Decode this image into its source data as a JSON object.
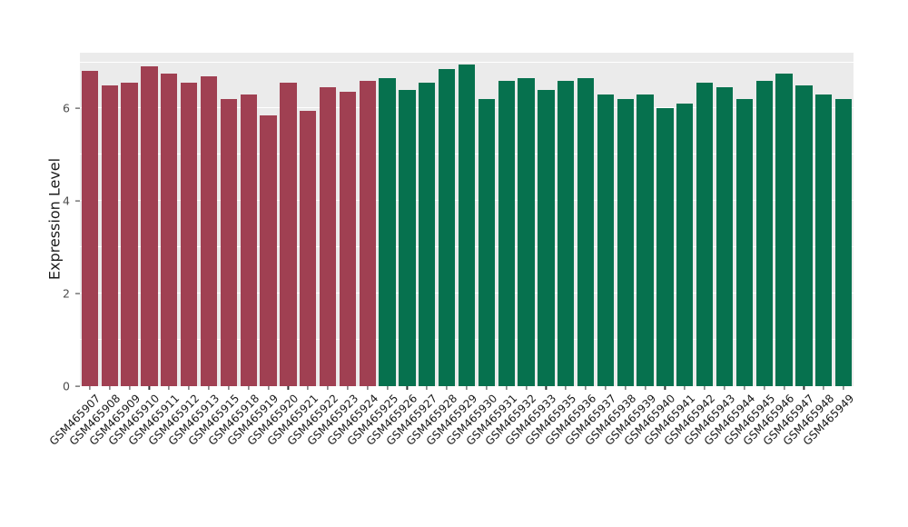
{
  "chart_data": {
    "type": "bar",
    "title": "",
    "xlabel": "",
    "ylabel": "Expression Level",
    "ylim": [
      0,
      7.2
    ],
    "yticks": [
      0,
      2,
      4,
      6
    ],
    "ytick_labels": [
      "0",
      "2",
      "4",
      "6"
    ],
    "grid": true,
    "legend_position": "none",
    "panel_background": "#EBEBEB",
    "gridline_color": "#FFFFFF",
    "group_colors": [
      "#A04052",
      "#06714E"
    ],
    "group_index": [
      0,
      0,
      0,
      0,
      0,
      0,
      0,
      0,
      0,
      0,
      0,
      0,
      0,
      0,
      0,
      1,
      1,
      1,
      1,
      1,
      1,
      1,
      1,
      1,
      1,
      1,
      1,
      1,
      1,
      1,
      1,
      1,
      1,
      1,
      1,
      1,
      1,
      1,
      1
    ],
    "categories": [
      "GSM465907",
      "GSM465908",
      "GSM465909",
      "GSM465910",
      "GSM465911",
      "GSM465912",
      "GSM465913",
      "GSM465915",
      "GSM465918",
      "GSM465919",
      "GSM465920",
      "GSM465921",
      "GSM465922",
      "GSM465923",
      "GSM465924",
      "GSM465925",
      "GSM465926",
      "GSM465927",
      "GSM465928",
      "GSM465929",
      "GSM465930",
      "GSM465931",
      "GSM465932",
      "GSM465933",
      "GSM465935",
      "GSM465936",
      "GSM465937",
      "GSM465938",
      "GSM465939",
      "GSM465940",
      "GSM465941",
      "GSM465942",
      "GSM465943",
      "GSM465944",
      "GSM465945",
      "GSM465946",
      "GSM465947",
      "GSM465948",
      "GSM465949"
    ],
    "values": [
      6.8,
      6.5,
      6.55,
      6.9,
      6.75,
      6.55,
      6.7,
      6.2,
      6.3,
      5.85,
      6.55,
      5.95,
      6.45,
      6.35,
      6.6,
      6.65,
      6.4,
      6.55,
      6.85,
      6.95,
      6.2,
      6.6,
      6.65,
      6.4,
      6.6,
      6.65,
      6.3,
      6.2,
      6.3,
      6.0,
      6.1,
      6.55,
      6.45,
      6.2,
      6.6,
      6.75,
      6.5,
      6.3,
      6.2
    ]
  }
}
